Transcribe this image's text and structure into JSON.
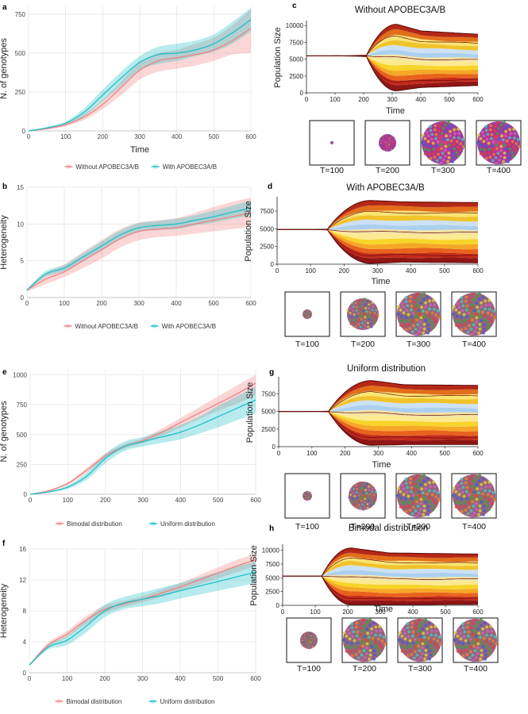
{
  "colors": {
    "without": "#f08080",
    "with": "#20c0c8",
    "grid": "#e6e6e6"
  },
  "chart_data": [
    {
      "panel": "a",
      "type": "line",
      "xlabel": "Time",
      "ylabel": "N. of genotypes",
      "xlim": [
        0,
        600
      ],
      "ylim": [
        0,
        800
      ],
      "xticks": [
        "0",
        "100",
        "200",
        "300",
        "400",
        "500",
        "600"
      ],
      "yticks": [
        "0",
        "250",
        "500",
        "750"
      ],
      "legend": [
        "Without APOBEC3A/B",
        "With APOBEC3A/B"
      ],
      "series": [
        {
          "name": "Without APOBEC3A/B",
          "color": "#f08080",
          "x": [
            0,
            50,
            100,
            150,
            200,
            250,
            300,
            350,
            400,
            450,
            500,
            550,
            600
          ],
          "y": [
            0,
            15,
            40,
            90,
            170,
            280,
            390,
            450,
            470,
            490,
            520,
            580,
            660
          ],
          "lo": [
            0,
            10,
            30,
            70,
            140,
            230,
            330,
            380,
            400,
            420,
            450,
            490,
            500
          ],
          "hi": [
            0,
            20,
            50,
            110,
            200,
            320,
            440,
            500,
            520,
            560,
            600,
            680,
            780
          ]
        },
        {
          "name": "With APOBEC3A/B",
          "color": "#20c0c8",
          "x": [
            0,
            50,
            100,
            150,
            200,
            250,
            300,
            350,
            400,
            450,
            500,
            550,
            600
          ],
          "y": [
            0,
            20,
            50,
            120,
            230,
            340,
            440,
            490,
            500,
            520,
            560,
            630,
            715
          ],
          "lo": [
            0,
            15,
            40,
            95,
            190,
            290,
            390,
            430,
            450,
            480,
            510,
            560,
            640
          ],
          "hi": [
            0,
            25,
            60,
            145,
            265,
            380,
            480,
            540,
            560,
            580,
            620,
            700,
            790
          ]
        }
      ]
    },
    {
      "panel": "b",
      "type": "line",
      "xlabel": "",
      "ylabel": "Heterogeneity",
      "xlim": [
        0,
        600
      ],
      "ylim": [
        0,
        15
      ],
      "xticks": [
        "0",
        "100",
        "200",
        "300",
        "400",
        "500",
        "600"
      ],
      "yticks": [
        "0",
        "5",
        "10",
        "15"
      ],
      "legend": [
        "Without APOBEC3A/B",
        "With APOBEC3A/B"
      ],
      "series": [
        {
          "name": "Without APOBEC3A/B",
          "color": "#f08080",
          "x": [
            0,
            50,
            100,
            150,
            200,
            250,
            300,
            350,
            400,
            450,
            500,
            550,
            600
          ],
          "y": [
            1,
            2.5,
            3.5,
            5,
            6.5,
            8,
            9,
            9.3,
            9.5,
            10,
            10.5,
            11,
            11.5
          ],
          "lo": [
            0.8,
            1.8,
            2.8,
            4,
            5.3,
            6.8,
            7.8,
            8.2,
            8.4,
            8.7,
            9,
            9.3,
            9.6
          ],
          "hi": [
            1.2,
            3.3,
            4.5,
            6.2,
            7.8,
            9.3,
            10.2,
            10.5,
            10.8,
            11.5,
            12.3,
            13,
            13.6
          ]
        },
        {
          "name": "With APOBEC3A/B",
          "color": "#20c0c8",
          "x": [
            0,
            50,
            100,
            150,
            200,
            250,
            300,
            350,
            400,
            450,
            500,
            550,
            600
          ],
          "y": [
            1,
            3.2,
            4,
            5.5,
            7,
            8.5,
            9.5,
            9.8,
            10,
            10.5,
            11,
            11.6,
            12.2
          ],
          "lo": [
            0.9,
            2.8,
            3.6,
            5,
            6.4,
            7.9,
            8.9,
            9.2,
            9.3,
            9.8,
            10.2,
            10.7,
            11.2
          ],
          "hi": [
            1.1,
            3.6,
            4.4,
            6,
            7.6,
            9.1,
            10.1,
            10.4,
            10.7,
            11.2,
            11.8,
            12.5,
            13.2
          ]
        }
      ]
    },
    {
      "panel": "c",
      "type": "area",
      "title": "Without APOBEC3A/B",
      "xlabel": "Time",
      "ylabel": "Population Size",
      "xlim": [
        0,
        600
      ],
      "ylim": [
        0,
        10500
      ],
      "xticks": [
        "0",
        "100",
        "200",
        "300",
        "400",
        "500",
        "600"
      ],
      "yticks": [
        "0",
        "2500",
        "5000",
        "7500",
        "10000"
      ],
      "start_value": 5500,
      "envelope_top": [
        10200,
        9200,
        8700
      ],
      "envelope_bottom": [
        300,
        800,
        1100
      ],
      "snapshots": [
        "T=100",
        "T=200",
        "T=300",
        "T=400"
      ]
    },
    {
      "panel": "d",
      "type": "area",
      "title": "With APOBEC3A/B",
      "xlabel": "Time",
      "ylabel": "Population Size",
      "xlim": [
        0,
        600
      ],
      "ylim": [
        0,
        9300
      ],
      "xticks": [
        "0",
        "100",
        "200",
        "300",
        "400",
        "500",
        "600"
      ],
      "yticks": [
        "0",
        "2500",
        "5000",
        "7500"
      ],
      "start_value": 4900,
      "envelope_top": [
        9000,
        8800,
        8700
      ],
      "envelope_bottom": [
        100,
        300,
        200
      ],
      "snapshots": [
        "T=100",
        "T=200",
        "T=300",
        "T=400"
      ]
    },
    {
      "panel": "e",
      "type": "line",
      "xlabel": "",
      "ylabel": "N. of genotypes",
      "xlim": [
        0,
        600
      ],
      "ylim": [
        0,
        1050
      ],
      "xticks": [
        "0",
        "100",
        "200",
        "300",
        "400",
        "500",
        "600"
      ],
      "yticks": [
        "0",
        "250",
        "500",
        "750",
        "1000"
      ],
      "legend": [
        "Bimodal distribution",
        "Uniform distribution"
      ],
      "series": [
        {
          "name": "Bimodal distribution",
          "color": "#f08080",
          "x": [
            0,
            50,
            100,
            150,
            200,
            250,
            300,
            350,
            400,
            450,
            500,
            550,
            600
          ],
          "y": [
            0,
            30,
            90,
            200,
            320,
            400,
            450,
            520,
            600,
            680,
            760,
            840,
            930
          ],
          "lo": [
            0,
            25,
            80,
            180,
            300,
            380,
            430,
            490,
            560,
            630,
            700,
            760,
            830
          ],
          "hi": [
            0,
            35,
            100,
            220,
            340,
            420,
            470,
            550,
            640,
            730,
            820,
            910,
            1000
          ]
        },
        {
          "name": "Uniform distribution",
          "color": "#20c0c8",
          "x": [
            0,
            50,
            100,
            150,
            200,
            250,
            300,
            350,
            400,
            450,
            500,
            550,
            600
          ],
          "y": [
            0,
            20,
            60,
            150,
            300,
            400,
            440,
            480,
            520,
            580,
            650,
            720,
            790
          ],
          "lo": [
            0,
            15,
            45,
            120,
            260,
            360,
            400,
            430,
            460,
            510,
            560,
            620,
            680
          ],
          "hi": [
            0,
            25,
            75,
            180,
            340,
            440,
            480,
            530,
            580,
            650,
            740,
            820,
            900
          ]
        }
      ]
    },
    {
      "panel": "f",
      "type": "line",
      "xlabel": "",
      "ylabel": "Heterogeneity",
      "xlim": [
        0,
        600
      ],
      "ylim": [
        0,
        16
      ],
      "xticks": [
        "0",
        "100",
        "200",
        "300",
        "400",
        "500",
        "600"
      ],
      "yticks": [
        "0",
        "4",
        "8",
        "12",
        "16"
      ],
      "legend": [
        "Bimodal distribution",
        "Uniform distribution"
      ],
      "series": [
        {
          "name": "Bimodal distribution",
          "color": "#f08080",
          "x": [
            0,
            50,
            100,
            150,
            200,
            250,
            300,
            350,
            400,
            450,
            500,
            550,
            600
          ],
          "y": [
            1,
            3.6,
            5,
            6.8,
            8.2,
            8.9,
            9.5,
            10.3,
            11.1,
            12,
            12.9,
            13.8,
            14.6
          ],
          "lo": [
            0.9,
            3.3,
            4.6,
            6.3,
            7.7,
            8.5,
            9.1,
            9.8,
            10.6,
            11.4,
            12.2,
            13,
            13.8
          ],
          "hi": [
            1.1,
            3.9,
            5.4,
            7.3,
            8.7,
            9.3,
            9.9,
            10.8,
            11.6,
            12.6,
            13.6,
            14.6,
            15.4
          ]
        },
        {
          "name": "Uniform distribution",
          "color": "#20c0c8",
          "x": [
            0,
            50,
            100,
            150,
            200,
            250,
            300,
            350,
            400,
            450,
            500,
            550,
            600
          ],
          "y": [
            1,
            3.3,
            4.2,
            6,
            8,
            9,
            9.5,
            10,
            10.6,
            11.2,
            11.8,
            12.4,
            13
          ],
          "lo": [
            0.9,
            3,
            3.6,
            5.2,
            7.2,
            8.2,
            8.6,
            9,
            9.6,
            10.1,
            10.6,
            11.1,
            11.6
          ],
          "hi": [
            1.1,
            3.6,
            4.8,
            6.8,
            8.8,
            9.8,
            10.4,
            11,
            11.6,
            12.3,
            13,
            13.7,
            14.4
          ]
        }
      ]
    },
    {
      "panel": "g",
      "type": "area",
      "title": "Uniform distribution",
      "xlabel": "Time",
      "ylabel": "Population Size",
      "xlim": [
        0,
        600
      ],
      "ylim": [
        0,
        9700
      ],
      "xticks": [
        "0",
        "100",
        "200",
        "300",
        "400",
        "500",
        "600"
      ],
      "yticks": [
        "0",
        "2500",
        "5000",
        "7500"
      ],
      "start_value": 5000,
      "envelope_top": [
        9400,
        8800,
        8700
      ],
      "envelope_bottom": [
        200,
        300,
        300
      ],
      "snapshots": [
        "T=100",
        "T=200",
        "T=300",
        "T=400"
      ]
    },
    {
      "panel": "h",
      "type": "area",
      "title": "Bimodal distribution",
      "xlabel": "Time",
      "ylabel": "Population Size",
      "xlim": [
        0,
        600
      ],
      "ylim": [
        0,
        10800
      ],
      "xticks": [
        "0",
        "100",
        "200",
        "300",
        "400",
        "500",
        "600"
      ],
      "yticks": [
        "0",
        "2500",
        "5000",
        "7500",
        "10000"
      ],
      "start_value": 5300,
      "envelope_top": [
        10400,
        9500,
        9300
      ],
      "envelope_bottom": [
        100,
        100,
        200
      ],
      "snapshots": [
        "T=100",
        "T=200",
        "T=300",
        "T=400"
      ]
    }
  ]
}
